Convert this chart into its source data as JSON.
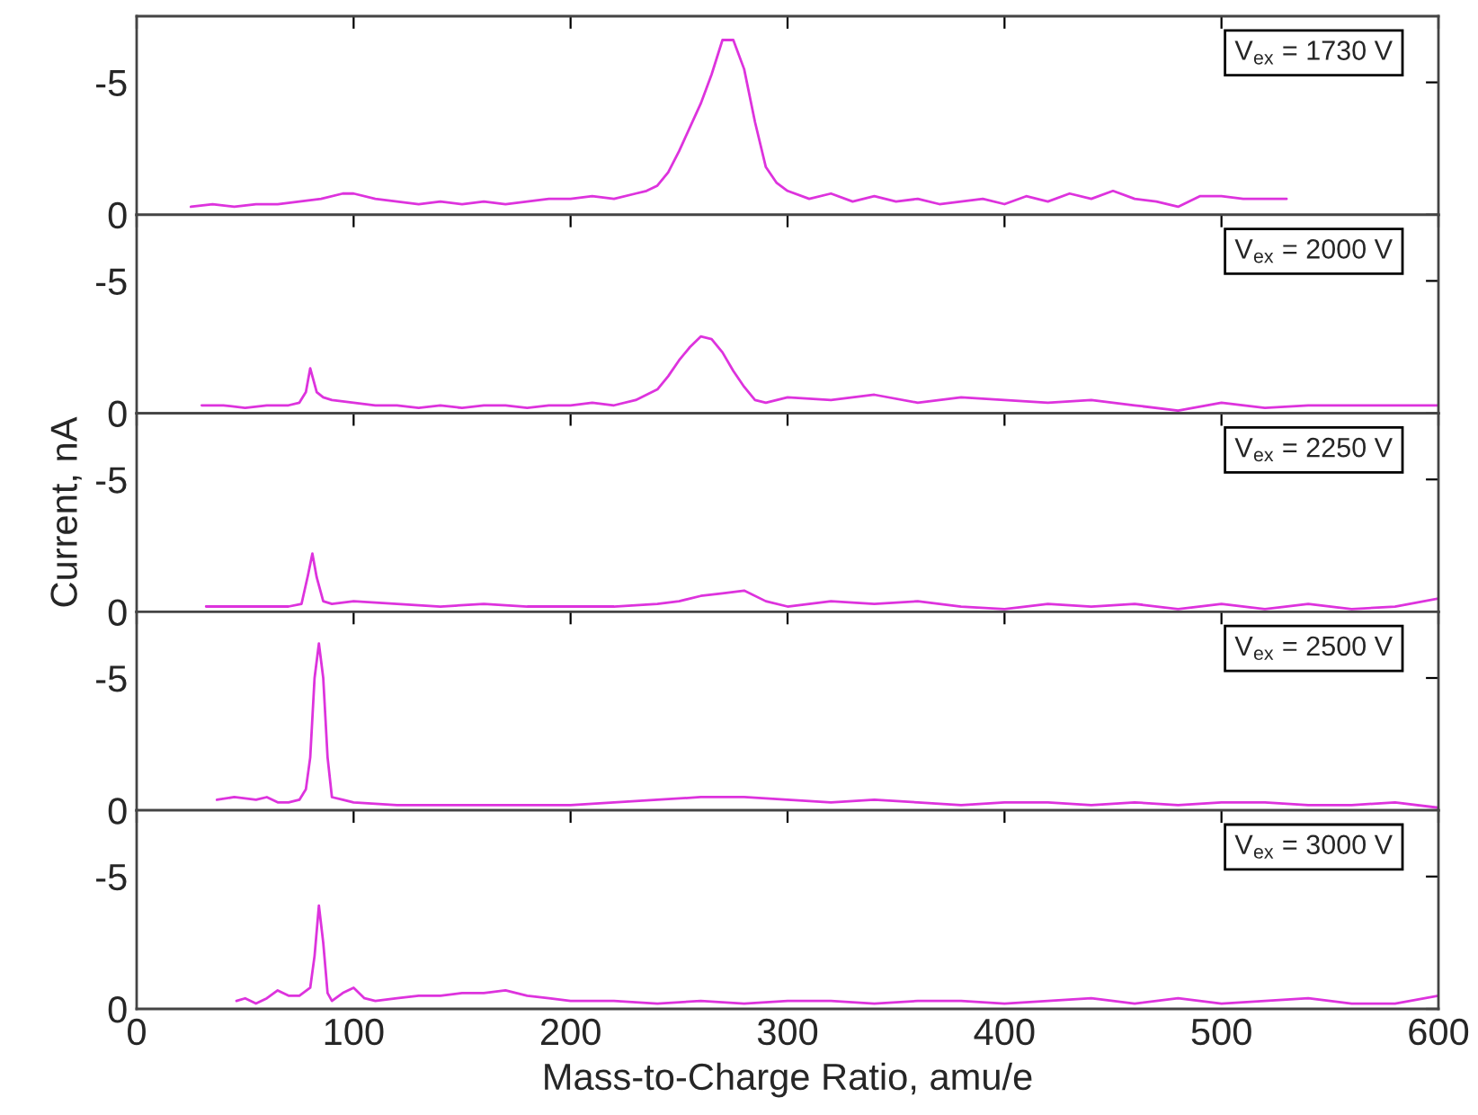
{
  "chart_data": [
    {
      "type": "line",
      "xlim": [
        0,
        600
      ],
      "xticks": [
        0,
        100,
        200,
        300,
        400,
        500,
        600
      ],
      "ylim": [
        0,
        -7.5
      ],
      "yticks": [
        0,
        -5
      ],
      "tick_labels": "y",
      "marker": "none",
      "line_style": "solid",
      "grid": false,
      "legend": false,
      "annotations": [
        "V$_{ex}$ = 1730 V"
      ],
      "series": [
        {
          "color": "#dd33dd",
          "x": [
            25,
            35,
            45,
            55,
            65,
            75,
            85,
            95,
            100,
            110,
            120,
            130,
            140,
            150,
            160,
            170,
            180,
            190,
            200,
            210,
            220,
            230,
            235,
            240,
            245,
            250,
            255,
            260,
            265,
            270,
            275,
            280,
            285,
            290,
            295,
            300,
            310,
            320,
            330,
            340,
            350,
            360,
            370,
            380,
            390,
            400,
            410,
            420,
            430,
            440,
            450,
            460,
            470,
            480,
            490,
            500,
            510,
            520,
            530
          ],
          "values": [
            -0.3,
            -0.4,
            -0.3,
            -0.4,
            -0.4,
            -0.5,
            -0.6,
            -0.8,
            -0.8,
            -0.6,
            -0.5,
            -0.4,
            -0.5,
            -0.4,
            -0.5,
            -0.4,
            -0.5,
            -0.6,
            -0.6,
            -0.7,
            -0.6,
            -0.8,
            -0.9,
            -1.1,
            -1.6,
            -2.4,
            -3.3,
            -4.2,
            -5.3,
            -6.6,
            -6.6,
            -5.5,
            -3.5,
            -1.8,
            -1.2,
            -0.9,
            -0.6,
            -0.8,
            -0.5,
            -0.7,
            -0.5,
            -0.6,
            -0.4,
            -0.5,
            -0.6,
            -0.4,
            -0.7,
            -0.5,
            -0.8,
            -0.6,
            -0.9,
            -0.6,
            -0.5,
            -0.3,
            -0.7,
            -0.7,
            -0.6,
            -0.6,
            -0.6
          ]
        }
      ]
    },
    {
      "type": "line",
      "xlim": [
        0,
        600
      ],
      "xticks": [
        0,
        100,
        200,
        300,
        400,
        500,
        600
      ],
      "ylim": [
        0,
        -7.5
      ],
      "yticks": [
        0,
        -5
      ],
      "tick_labels": "y",
      "marker": "none",
      "line_style": "solid",
      "grid": false,
      "legend": false,
      "annotations": [
        "V$_{ex}$ = 2000 V"
      ],
      "series": [
        {
          "color": "#dd33dd",
          "x": [
            30,
            40,
            50,
            60,
            70,
            75,
            78,
            80,
            83,
            86,
            90,
            100,
            110,
            120,
            130,
            140,
            150,
            160,
            170,
            180,
            190,
            200,
            210,
            220,
            230,
            240,
            245,
            250,
            255,
            260,
            265,
            270,
            275,
            280,
            285,
            290,
            300,
            320,
            340,
            360,
            380,
            400,
            420,
            440,
            460,
            480,
            500,
            520,
            540,
            560,
            580,
            600
          ],
          "values": [
            -0.3,
            -0.3,
            -0.2,
            -0.3,
            -0.3,
            -0.4,
            -0.8,
            -1.7,
            -0.8,
            -0.6,
            -0.5,
            -0.4,
            -0.3,
            -0.3,
            -0.2,
            -0.3,
            -0.2,
            -0.3,
            -0.3,
            -0.2,
            -0.3,
            -0.3,
            -0.4,
            -0.3,
            -0.5,
            -0.9,
            -1.4,
            -2.0,
            -2.5,
            -2.9,
            -2.8,
            -2.3,
            -1.6,
            -1.0,
            -0.5,
            -0.4,
            -0.6,
            -0.5,
            -0.7,
            -0.4,
            -0.6,
            -0.5,
            -0.4,
            -0.5,
            -0.3,
            -0.1,
            -0.4,
            -0.2,
            -0.3,
            -0.3,
            -0.3,
            -0.3
          ]
        }
      ]
    },
    {
      "type": "line",
      "xlim": [
        0,
        600
      ],
      "xticks": [
        0,
        100,
        200,
        300,
        400,
        500,
        600
      ],
      "ylim": [
        0,
        -7.5
      ],
      "yticks": [
        0,
        -5
      ],
      "tick_labels": "y",
      "marker": "none",
      "line_style": "solid",
      "grid": false,
      "legend": false,
      "ylabel": "Current, nA",
      "annotations": [
        "V$_{ex}$ = 2250 V"
      ],
      "series": [
        {
          "color": "#dd33dd",
          "x": [
            32,
            40,
            50,
            60,
            70,
            76,
            79,
            81,
            83,
            86,
            90,
            100,
            120,
            140,
            160,
            180,
            200,
            220,
            240,
            250,
            260,
            270,
            280,
            290,
            300,
            320,
            340,
            360,
            380,
            400,
            420,
            440,
            460,
            480,
            500,
            520,
            540,
            560,
            580,
            600
          ],
          "values": [
            -0.2,
            -0.2,
            -0.2,
            -0.2,
            -0.2,
            -0.3,
            -1.4,
            -2.2,
            -1.3,
            -0.4,
            -0.3,
            -0.4,
            -0.3,
            -0.2,
            -0.3,
            -0.2,
            -0.2,
            -0.2,
            -0.3,
            -0.4,
            -0.6,
            -0.7,
            -0.8,
            -0.4,
            -0.2,
            -0.4,
            -0.3,
            -0.4,
            -0.2,
            -0.1,
            -0.3,
            -0.2,
            -0.3,
            -0.1,
            -0.3,
            -0.1,
            -0.3,
            -0.1,
            -0.2,
            -0.5
          ]
        }
      ]
    },
    {
      "type": "line",
      "xlim": [
        0,
        600
      ],
      "xticks": [
        0,
        100,
        200,
        300,
        400,
        500,
        600
      ],
      "ylim": [
        0,
        -7.5
      ],
      "yticks": [
        0,
        -5
      ],
      "tick_labels": "y",
      "marker": "none",
      "line_style": "solid",
      "grid": false,
      "legend": false,
      "annotations": [
        "V$_{ex}$ = 2500 V"
      ],
      "series": [
        {
          "color": "#dd33dd",
          "x": [
            37,
            45,
            55,
            60,
            65,
            70,
            75,
            78,
            80,
            82,
            84,
            86,
            88,
            90,
            95,
            100,
            120,
            140,
            160,
            180,
            200,
            220,
            240,
            260,
            280,
            300,
            320,
            340,
            360,
            380,
            400,
            420,
            440,
            460,
            480,
            500,
            520,
            540,
            560,
            580,
            600
          ],
          "values": [
            -0.4,
            -0.5,
            -0.4,
            -0.5,
            -0.3,
            -0.3,
            -0.4,
            -0.8,
            -2.0,
            -5.0,
            -6.3,
            -5.0,
            -2.0,
            -0.5,
            -0.4,
            -0.3,
            -0.2,
            -0.2,
            -0.2,
            -0.2,
            -0.2,
            -0.3,
            -0.4,
            -0.5,
            -0.5,
            -0.4,
            -0.3,
            -0.4,
            -0.3,
            -0.2,
            -0.3,
            -0.3,
            -0.2,
            -0.3,
            -0.2,
            -0.3,
            -0.3,
            -0.2,
            -0.2,
            -0.3,
            -0.1
          ]
        }
      ]
    },
    {
      "type": "line",
      "xlim": [
        0,
        600
      ],
      "xticks": [
        0,
        100,
        200,
        300,
        400,
        500,
        600
      ],
      "ylim": [
        0,
        -7.5
      ],
      "yticks": [
        0,
        -5
      ],
      "marker": "none",
      "line_style": "solid",
      "grid": false,
      "legend": false,
      "xlabel": "Mass-to-Charge Ratio, amu/e",
      "annotations": [
        "V$_{ex}$ = 3000 V"
      ],
      "series": [
        {
          "color": "#dd33dd",
          "x": [
            46,
            50,
            55,
            60,
            65,
            70,
            75,
            80,
            82,
            84,
            86,
            88,
            90,
            95,
            100,
            105,
            110,
            120,
            130,
            140,
            150,
            160,
            170,
            180,
            190,
            200,
            220,
            240,
            260,
            280,
            300,
            320,
            340,
            360,
            380,
            400,
            420,
            440,
            460,
            480,
            500,
            520,
            540,
            560,
            580,
            600
          ],
          "values": [
            -0.3,
            -0.4,
            -0.2,
            -0.4,
            -0.7,
            -0.5,
            -0.5,
            -0.8,
            -2.0,
            -3.9,
            -2.5,
            -0.6,
            -0.3,
            -0.6,
            -0.8,
            -0.4,
            -0.3,
            -0.4,
            -0.5,
            -0.5,
            -0.6,
            -0.6,
            -0.7,
            -0.5,
            -0.4,
            -0.3,
            -0.3,
            -0.2,
            -0.3,
            -0.2,
            -0.3,
            -0.3,
            -0.2,
            -0.3,
            -0.3,
            -0.2,
            -0.3,
            -0.4,
            -0.2,
            -0.4,
            -0.2,
            -0.3,
            -0.4,
            -0.2,
            -0.2,
            -0.5
          ]
        }
      ]
    }
  ]
}
